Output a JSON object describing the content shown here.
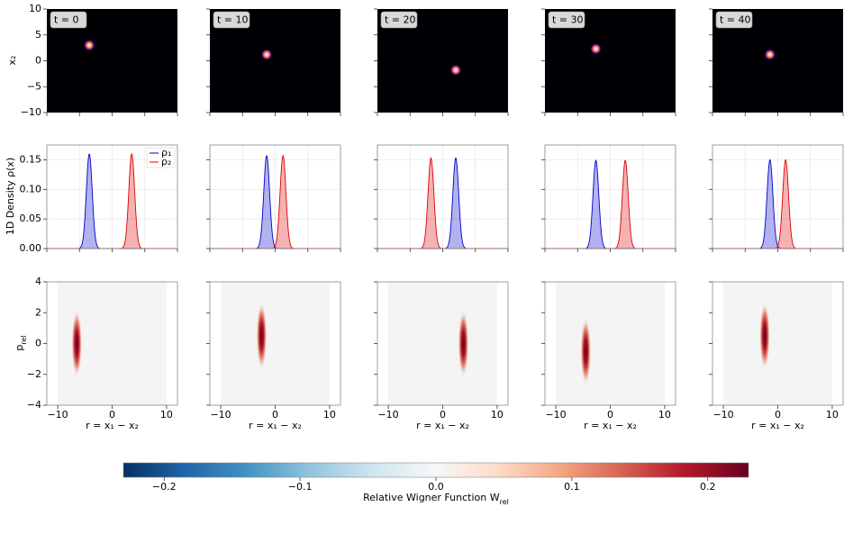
{
  "chart_data": {
    "type": "wigner-grid",
    "panel_titles": [
      "t = 0",
      "t = 10",
      "t = 20",
      "t = 30",
      "t = 40"
    ],
    "position": {
      "ylabel": "x₂",
      "xlim": [
        -10,
        10
      ],
      "ylim": [
        -10,
        10
      ],
      "xticks": [
        -10,
        -5,
        0,
        5,
        10
      ],
      "yticks": [
        10,
        5,
        0,
        {
          "value": -5,
          "label": "−5"
        },
        {
          "value": -10,
          "label": "−10"
        }
      ],
      "x1": [
        -3.5,
        -1.3,
        2.0,
        -2.2,
        -1.2
      ],
      "x2": [
        3.0,
        1.2,
        -1.8,
        2.3,
        1.2
      ]
    },
    "density": {
      "ylabel": "1D Density ρ(x)",
      "xlim": [
        -10,
        10
      ],
      "ylim": [
        0,
        0.175
      ],
      "xticks": [
        -10,
        -5,
        0,
        5,
        10
      ],
      "yticks": [
        {
          "value": 0,
          "label": "0.00"
        },
        {
          "value": 0.05,
          "label": "0.05"
        },
        {
          "value": 0.1,
          "label": "0.10"
        },
        {
          "value": 0.15,
          "label": "0.15"
        }
      ],
      "grid": true,
      "peak_sigma": 0.45,
      "series": [
        {
          "name": "ρ₁",
          "color": "#0000cc",
          "centers": [
            -3.5,
            -1.3,
            2.0,
            -2.2,
            -1.2
          ],
          "values": [
            0.16,
            0.157,
            0.153,
            0.149,
            0.15
          ]
        },
        {
          "name": "ρ₂",
          "color": "#dd0000",
          "centers": [
            3.0,
            1.2,
            -1.8,
            2.3,
            1.2
          ],
          "values": [
            0.16,
            0.157,
            0.153,
            0.149,
            0.15
          ]
        }
      ]
    },
    "wigner": {
      "ylabel": [
        "p",
        "rel"
      ],
      "xlabel": "r = x₁ − x₂",
      "xlim": [
        -12,
        12
      ],
      "ylim": [
        -4,
        4
      ],
      "xticks": [
        {
          "value": -10,
          "label": "−10"
        },
        0,
        10
      ],
      "yticks": [
        4,
        2,
        0,
        {
          "value": -2,
          "label": "−2"
        },
        {
          "value": -4,
          "label": "−4"
        }
      ],
      "domain": [
        -10,
        10
      ],
      "r": [
        -6.5,
        -2.5,
        3.8,
        -4.5,
        -2.4
      ],
      "p": [
        0,
        0.5,
        0,
        -0.5,
        0.5
      ],
      "values": [
        0.23,
        0.23,
        0.23,
        0.23,
        0.23
      ]
    },
    "colorbar": {
      "label": [
        "Relative Wigner Function W",
        "rel"
      ],
      "lim": [
        -0.23,
        0.23
      ],
      "ticks": [
        {
          "value": -0.2,
          "label": "−0.2"
        },
        {
          "value": -0.1,
          "label": "−0.1"
        },
        {
          "value": 0,
          "label": "0.0"
        },
        0.1,
        0.2
      ]
    }
  }
}
